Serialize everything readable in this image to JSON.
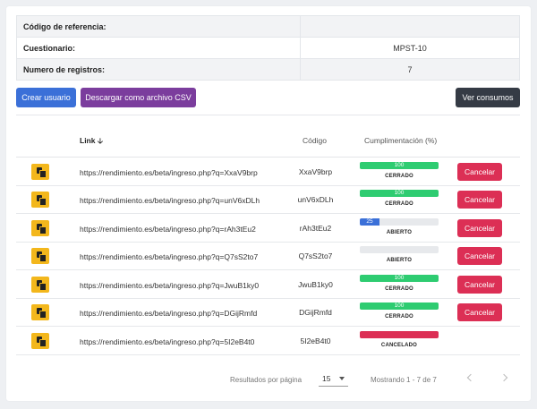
{
  "info": [
    {
      "label": "Código de referencia:",
      "value": ""
    },
    {
      "label": "Cuestionario:",
      "value": "MPST-10"
    },
    {
      "label": "Numero de registros:",
      "value": "7"
    }
  ],
  "actions": {
    "crear": "Crear usuario",
    "csv": "Descargar como archivo CSV",
    "ver": "Ver consumos"
  },
  "table": {
    "headers": {
      "link": "Link",
      "codigo": "Código",
      "cumplimiento": "Cumplimentación (%)"
    },
    "rows": [
      {
        "link": "https://rendimiento.es/beta/ingreso.php?q=XxaV9brp",
        "code": "XxaV9brp",
        "progress": 100,
        "progress_label": "100",
        "state": "CERRADO",
        "cancel": "Cancelar"
      },
      {
        "link": "https://rendimiento.es/beta/ingreso.php?q=unV6xDLh",
        "code": "unV6xDLh",
        "progress": 100,
        "progress_label": "100",
        "state": "CERRADO",
        "cancel": "Cancelar"
      },
      {
        "link": "https://rendimiento.es/beta/ingreso.php?q=rAh3tEu2",
        "code": "rAh3tEu2",
        "progress": 25,
        "progress_label": "25",
        "state": "ABIERTO",
        "cancel": "Cancelar"
      },
      {
        "link": "https://rendimiento.es/beta/ingreso.php?q=Q7sS2to7",
        "code": "Q7sS2to7",
        "progress": 0,
        "progress_label": "",
        "state": "ABIERTO",
        "cancel": "Cancelar"
      },
      {
        "link": "https://rendimiento.es/beta/ingreso.php?q=JwuB1ky0",
        "code": "JwuB1ky0",
        "progress": 100,
        "progress_label": "100",
        "state": "CERRADO",
        "cancel": "Cancelar"
      },
      {
        "link": "https://rendimiento.es/beta/ingreso.php?q=DGijRmfd",
        "code": "DGijRmfd",
        "progress": 100,
        "progress_label": "100",
        "state": "CERRADO",
        "cancel": "Cancelar"
      },
      {
        "link": "https://rendimiento.es/beta/ingreso.php?q=5I2eB4t0",
        "code": "5I2eB4t0",
        "progress": 100,
        "progress_label": "",
        "state": "CANCELADO",
        "cancel": ""
      }
    ]
  },
  "pagination": {
    "per_page_label": "Resultados por página",
    "per_page": "15",
    "range": "Mostrando 1 - 7 de 7"
  },
  "colors": {
    "green": "#2ecc71",
    "blue": "#3b70d8",
    "red": "#dc2f55",
    "yellow": "#f3b71c"
  }
}
